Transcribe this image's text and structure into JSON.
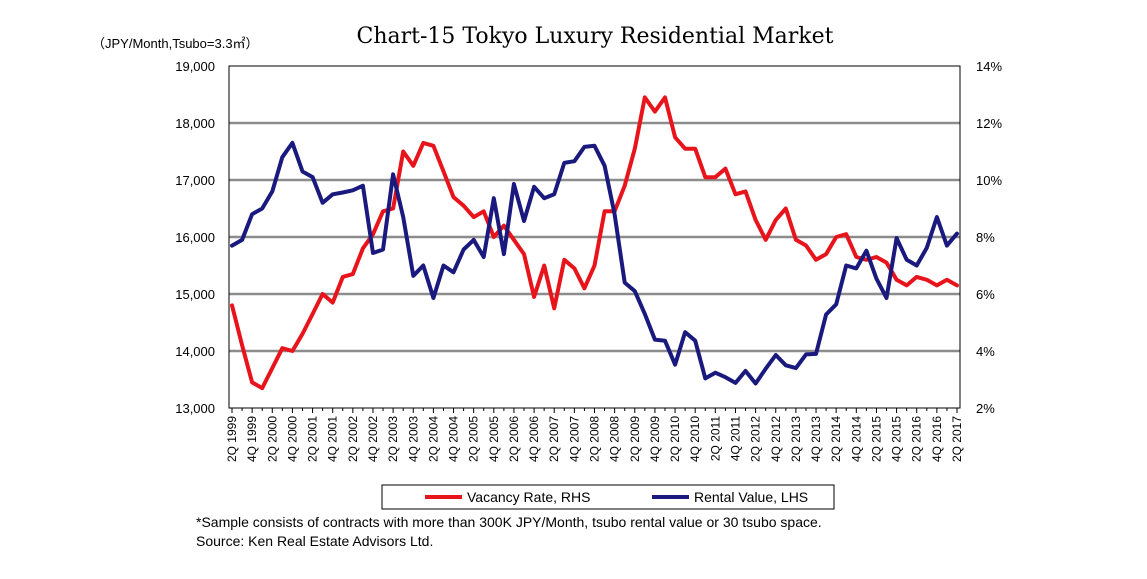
{
  "chart_data": {
    "type": "line",
    "title": "Chart-15 Tokyo Luxury Residential Market",
    "unit_label": "（JPY/Month,Tsubo=3.3㎡）",
    "y_left": {
      "min": 13000,
      "max": 19000,
      "ticks": [
        "13,000",
        "14,000",
        "15,000",
        "16,000",
        "17,000",
        "18,000",
        "19,000"
      ]
    },
    "y_right": {
      "min": 2,
      "max": 14,
      "ticks": [
        "2%",
        "4%",
        "6%",
        "8%",
        "10%",
        "12%",
        "14%"
      ]
    },
    "x_tick_labels": [
      "2Q 1999",
      "4Q 1999",
      "2Q 2000",
      "4Q 2000",
      "2Q 2001",
      "4Q 2001",
      "2Q 2002",
      "4Q 2002",
      "2Q 2003",
      "4Q 2003",
      "2Q 2004",
      "4Q 2004",
      "2Q 2005",
      "4Q 2005",
      "2Q 2006",
      "4Q 2006",
      "2Q 2007",
      "4Q 2007",
      "2Q 2008",
      "4Q 2008",
      "2Q 2009",
      "4Q 2009",
      "2Q 2010",
      "4Q 2010",
      "2Q 2011",
      "4Q 2011",
      "2Q 2012",
      "4Q 2012",
      "2Q 2013",
      "4Q 2013",
      "2Q 2014",
      "4Q 2014",
      "2Q 2015",
      "4Q 2015",
      "2Q 2016",
      "4Q 2016",
      "2Q 2017"
    ],
    "grid": true,
    "series": [
      {
        "name": "Vacancy Rate, RHS",
        "axis": "right",
        "color": "#e8141b",
        "values": [
          5.6,
          4.2,
          2.9,
          2.7,
          3.4,
          4.1,
          4.0,
          4.6,
          5.3,
          6.0,
          5.7,
          6.6,
          6.7,
          7.6,
          8.1,
          8.9,
          9.0,
          11.0,
          10.5,
          11.3,
          11.2,
          10.3,
          9.4,
          9.1,
          8.7,
          8.9,
          8.0,
          8.4,
          7.9,
          7.4,
          5.9,
          7.0,
          5.5,
          7.2,
          6.9,
          6.2,
          7.0,
          8.9,
          8.9,
          9.8,
          11.1,
          12.9,
          12.4,
          12.9,
          11.5,
          11.1,
          11.1,
          10.1,
          10.1,
          10.4,
          9.5,
          9.6,
          8.6,
          7.9,
          8.6,
          9.0,
          7.9,
          7.7,
          7.2,
          7.4,
          8.0,
          8.1,
          7.3,
          7.2,
          7.3,
          7.1,
          6.5,
          6.3,
          6.6,
          6.5,
          6.3,
          6.5,
          6.3
        ]
      },
      {
        "name": "Rental Value, LHS",
        "axis": "left",
        "color": "#1a1a7e",
        "values": [
          15850,
          15950,
          16400,
          16500,
          16800,
          17400,
          17650,
          17150,
          17050,
          16600,
          16750,
          16780,
          16820,
          16900,
          15720,
          15780,
          17100,
          16350,
          15320,
          15500,
          14930,
          15500,
          15380,
          15780,
          15950,
          15650,
          16680,
          15700,
          16930,
          16280,
          16880,
          16680,
          16750,
          17300,
          17330,
          17580,
          17600,
          17250,
          16400,
          15200,
          15050,
          14650,
          14200,
          14180,
          13760,
          14330,
          14180,
          13520,
          13620,
          13540,
          13440,
          13650,
          13430,
          13690,
          13930,
          13750,
          13700,
          13940,
          13950,
          14640,
          14820,
          15500,
          15450,
          15760,
          15270,
          14930,
          15980,
          15600,
          15500,
          15810,
          16350,
          15850,
          16060
        ]
      }
    ]
  },
  "legend": {
    "vacancy_label": "Vacancy Rate, RHS",
    "rental_label": "Rental Value, LHS"
  },
  "notes": {
    "sample": "*Sample consists of contracts with more than 300K JPY/Month, tsubo rental value or 30 tsubo space.",
    "source": "Source: Ken Real Estate Advisors Ltd."
  }
}
